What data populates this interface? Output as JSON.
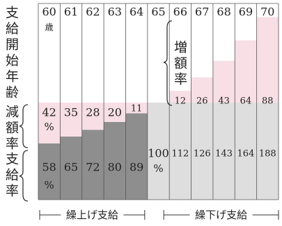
{
  "chart_data": {
    "type": "bar",
    "y_label": "支給開始年齢",
    "categories": [
      "60",
      "61",
      "62",
      "63",
      "64",
      "65",
      "66",
      "67",
      "68",
      "69",
      "70"
    ],
    "category_unit": "歳",
    "unit": "%",
    "series": [
      {
        "name": "支給率",
        "colors": [
          "#8e8e8e",
          "#8e8e8e",
          "#8e8e8e",
          "#8e8e8e",
          "#8e8e8e",
          "#dedede",
          "#dedede",
          "#dedede",
          "#dedede",
          "#dedede",
          "#dedede"
        ],
        "values": [
          58,
          65,
          72,
          80,
          89,
          100,
          112,
          126,
          143,
          164,
          188
        ]
      },
      {
        "name": "減額率",
        "color": "#f7dfe5",
        "values": [
          42,
          35,
          28,
          20,
          11,
          null,
          null,
          null,
          null,
          null,
          null
        ]
      },
      {
        "name": "増額率",
        "color": "#f7dfe5",
        "values": [
          null,
          null,
          null,
          null,
          null,
          null,
          12,
          26,
          43,
          64,
          88
        ]
      }
    ],
    "groups": [
      "繰上げ支給",
      "繰下げ支給"
    ],
    "ylim": [
      0,
      190
    ]
  }
}
